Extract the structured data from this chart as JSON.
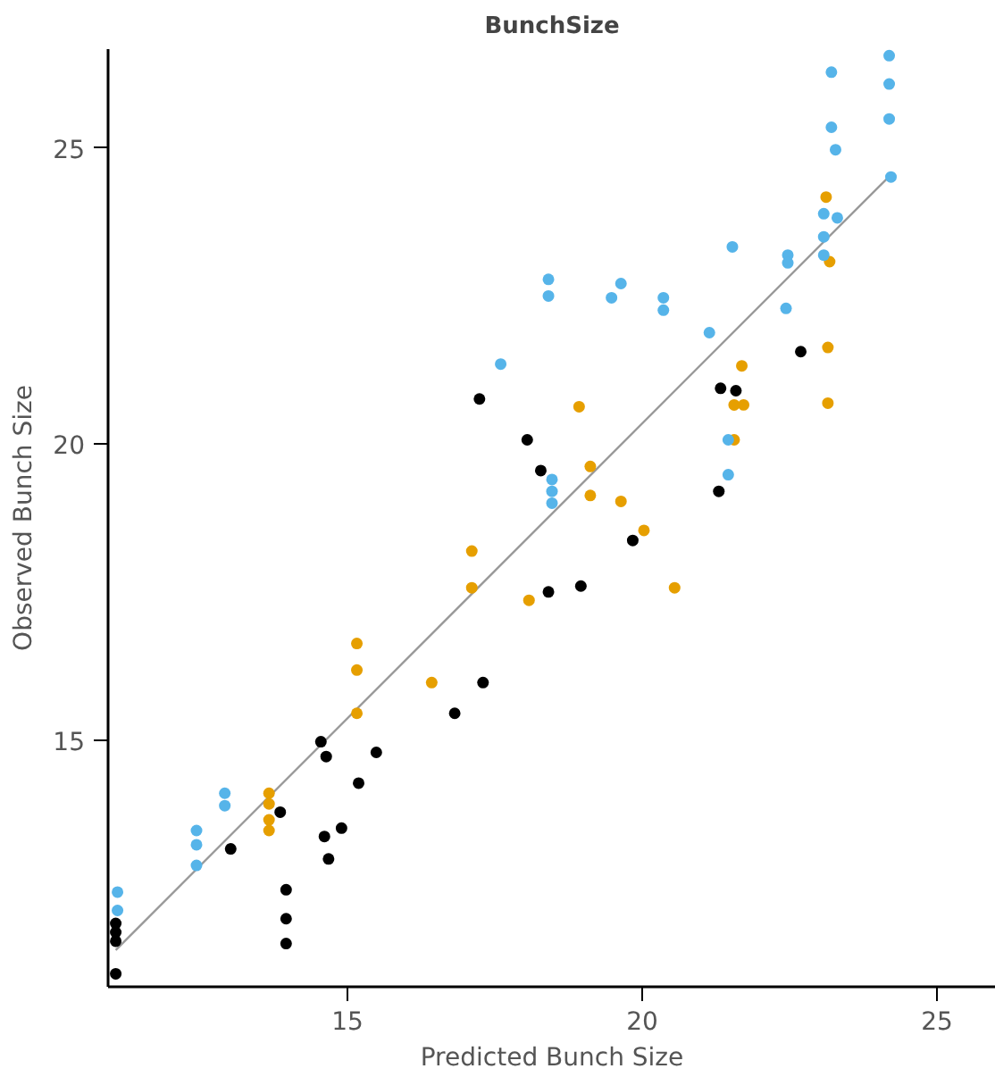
{
  "chart_data": {
    "type": "scatter",
    "title": "BunchSize",
    "xlabel": "Predicted Bunch Size",
    "ylabel": "Observed Bunch Size",
    "xlim": [
      10.94,
      26.0
    ],
    "ylim": [
      10.83,
      26.67
    ],
    "xticks": [
      15,
      20,
      25
    ],
    "yticks": [
      15,
      20,
      25
    ],
    "grid": false,
    "marker": "circle",
    "series": [
      {
        "type": "line",
        "marker": "none",
        "color": "#999999",
        "x": [
          11.07,
          24.22
        ],
        "values": [
          11.45,
          24.55
        ]
      },
      {
        "color": "#000000",
        "x": [
          11.07,
          11.07,
          11.07,
          11.07,
          13.02,
          13.96,
          13.96,
          13.96,
          13.86,
          14.55,
          14.64,
          14.61,
          14.68,
          14.9,
          15.19,
          15.49,
          16.82,
          17.3,
          17.24,
          18.05,
          18.28,
          18.41,
          18.96,
          19.84,
          21.33,
          21.59,
          21.3,
          22.69
        ],
        "values": [
          11.9,
          11.75,
          11.6,
          11.05,
          13.16,
          12.47,
          11.98,
          11.56,
          13.78,
          14.97,
          14.72,
          13.37,
          12.99,
          13.51,
          14.27,
          14.79,
          15.45,
          15.97,
          20.76,
          20.07,
          19.55,
          17.5,
          17.6,
          18.37,
          20.94,
          20.9,
          19.2,
          21.56
        ]
      },
      {
        "color": "#e69f00",
        "x": [
          13.67,
          13.67,
          13.67,
          13.67,
          15.16,
          15.16,
          15.16,
          16.43,
          17.11,
          17.11,
          18.08,
          18.93,
          19.12,
          19.12,
          19.64,
          20.03,
          20.55,
          21.69,
          21.56,
          21.72,
          21.56,
          23.15,
          23.15,
          23.12,
          23.18
        ],
        "values": [
          14.1,
          13.92,
          13.65,
          13.47,
          15.45,
          16.63,
          16.18,
          15.97,
          18.19,
          17.57,
          17.36,
          20.63,
          19.62,
          19.13,
          19.03,
          18.54,
          17.57,
          21.32,
          20.66,
          20.66,
          20.07,
          21.63,
          20.69,
          24.17,
          23.08
        ]
      },
      {
        "color": "#56b4e9",
        "x": [
          11.1,
          11.1,
          12.44,
          12.44,
          12.44,
          12.92,
          12.92,
          17.6,
          18.41,
          18.41,
          19.64,
          19.48,
          18.47,
          18.47,
          18.47,
          20.36,
          20.36,
          21.14,
          21.53,
          22.47,
          22.47,
          22.44,
          21.46,
          21.46,
          23.21,
          23.21,
          23.28,
          24.19,
          24.19,
          24.19,
          24.22,
          23.08,
          23.31,
          23.08,
          23.08
        ],
        "values": [
          12.43,
          12.12,
          13.47,
          13.23,
          12.88,
          14.1,
          13.89,
          21.35,
          22.78,
          22.5,
          22.71,
          22.47,
          19.4,
          19.2,
          19.0,
          22.47,
          22.26,
          21.88,
          23.33,
          23.19,
          23.06,
          22.29,
          20.07,
          19.48,
          26.28,
          25.35,
          24.97,
          26.56,
          26.08,
          25.49,
          24.51,
          23.89,
          23.82,
          23.5,
          23.19
        ]
      }
    ]
  }
}
